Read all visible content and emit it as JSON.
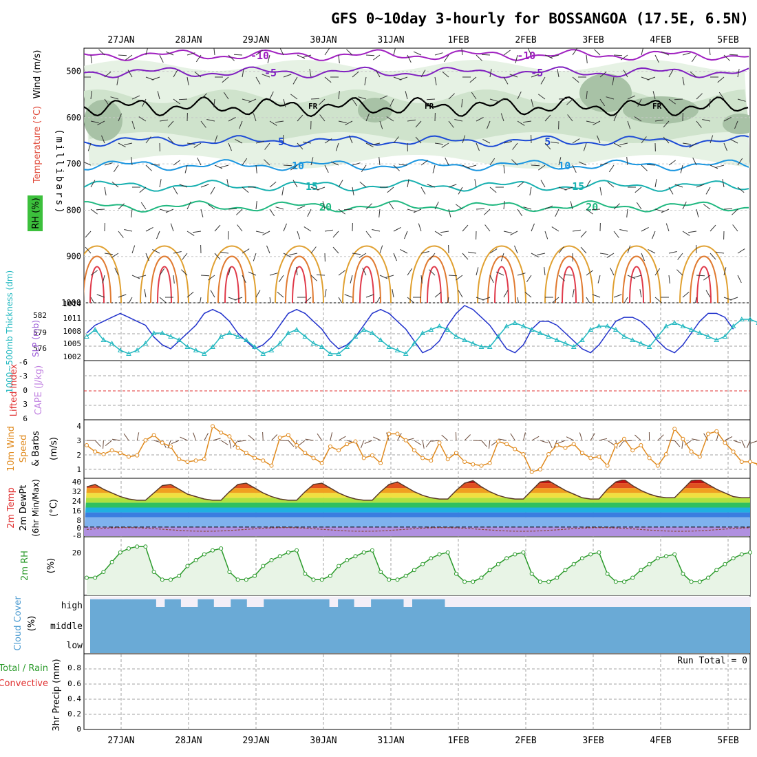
{
  "title": "GFS 0~10day 3-hourly for BOSSANGOA (17.5E, 6.5N)",
  "date_labels": [
    "27JAN",
    "28JAN",
    "29JAN",
    "30JAN",
    "31JAN",
    "1FEB",
    "2FEB",
    "3FEB",
    "4FEB",
    "5FEB"
  ],
  "colors": {
    "frame": "#000000",
    "grid": "#a0a0a0",
    "slp": "#2233cc",
    "thickness": "#22b8c0",
    "wind10m": "#e08a1e",
    "rh2m": "#2a9a2a",
    "cloud": "#6aaad6",
    "cloud_clear": "#f3eff8",
    "lifted_zero": "#e03030"
  },
  "panels": {
    "upper": {
      "ylabel": "(millibars)",
      "legend": [
        {
          "text": "Wind (m/s)",
          "color": "#000000"
        },
        {
          "text": "Temperature (°C)",
          "color": "#e04a3a"
        },
        {
          "text": "RH (%)",
          "color": "#2a9a2a"
        }
      ],
      "pressure_ticks": [
        500,
        600,
        700,
        800,
        900,
        1000
      ],
      "freezing_label": "FR",
      "isotherms": [
        {
          "label": "-10",
          "color": "#a020c0"
        },
        {
          "label": "-5",
          "color": "#8020c0"
        },
        {
          "label": "5",
          "color": "#1d4bd6"
        },
        {
          "label": "10",
          "color": "#1a96e0"
        },
        {
          "label": "15",
          "color": "#18b0b0"
        },
        {
          "label": "20",
          "color": "#20b880"
        }
      ]
    },
    "slp": {
      "label_left": "1000~500mb Thickness (dm)",
      "label_right": "SLP (mb)",
      "left_ticks": [
        "582",
        "579",
        "576"
      ],
      "right_ticks": [
        "1014",
        "1011",
        "1008",
        "1005",
        "1002"
      ]
    },
    "lifted": {
      "label_a": "Lifted Index",
      "label_b": "CAPE (J/kg)",
      "ticks": [
        "-6",
        "-3",
        "0",
        "3",
        "6"
      ]
    },
    "wind": {
      "label_a": "10m Wind",
      "label_b": "Speed",
      "label_c": "& Barbs",
      "unit": "(m/s)",
      "ticks": [
        "4",
        "3",
        "2",
        "1"
      ]
    },
    "temp": {
      "label_a": "2m Temp",
      "label_b": "2m DewPt",
      "label_c": "(6hr Min/Max)",
      "unit": "(°C)",
      "ticks": [
        "40",
        "32",
        "24",
        "16",
        "8",
        "0",
        "-8"
      ]
    },
    "rh": {
      "label": "2m RH",
      "unit": "(%)",
      "ticks": [
        "20"
      ]
    },
    "cloud": {
      "label": "Cloud Cover",
      "unit": "(%)",
      "levels": [
        "high",
        "middle",
        "low"
      ]
    },
    "precip": {
      "label_a": "Total / Rain",
      "label_b": "Convective",
      "ylabel": "3hr Precip (mm)",
      "ticks": [
        "0.8",
        "0.6",
        "0.4",
        "0.2",
        "0"
      ],
      "run_total": "Run Total = 0"
    }
  },
  "chart_data": [
    {
      "type": "line",
      "name": "slp",
      "ylabel": "SLP (mb)",
      "ylim": [
        1000,
        1014
      ],
      "x_step_hours": 3,
      "series": [
        {
          "name": "SLP (mb)",
          "values": [
            1007,
            1009,
            1010,
            1011,
            1012,
            1011,
            1010,
            1009,
            1006,
            1004,
            1003,
            1005,
            1007,
            1009,
            1012,
            1013,
            1012,
            1010,
            1007,
            1005,
            1003,
            1004,
            1006,
            1009,
            1012,
            1013,
            1012,
            1010,
            1008,
            1005,
            1003,
            1004,
            1006,
            1009,
            1012,
            1013,
            1012,
            1010,
            1008,
            1005,
            1002,
            1003,
            1005,
            1009,
            1012,
            1014,
            1013,
            1011,
            1009,
            1006,
            1003,
            1002,
            1004,
            1008,
            1010,
            1010,
            1009,
            1007,
            1005,
            1003,
            1002,
            1004,
            1007,
            1010,
            1011,
            1011,
            1010,
            1008,
            1005,
            1003,
            1002,
            1004,
            1007,
            1010,
            1012,
            1012,
            1011,
            1008
          ]
        }
      ]
    },
    {
      "type": "line",
      "name": "thickness",
      "ylabel": "1000~500mb Thickness (dm)",
      "ylim": [
        575,
        583
      ],
      "series": [
        {
          "name": "1000~500mb Thickness (dm)",
          "values": [
            578.5,
            579.5,
            578,
            577.5,
            576.5,
            576,
            576.5,
            577.5,
            579,
            579,
            578.5,
            578,
            577,
            576.5,
            576,
            577,
            578.5,
            579,
            578.5,
            578,
            577,
            576,
            576.5,
            577.5,
            579,
            579.5,
            578.5,
            577.5,
            577,
            576,
            576,
            577,
            578.5,
            579.5,
            579,
            578,
            577,
            576.5,
            576,
            577.5,
            579,
            579.5,
            580,
            579.5,
            578.5,
            578,
            577.5,
            577,
            577,
            578.5,
            580,
            580.5,
            580,
            579.5,
            579,
            578.5,
            578,
            577.5,
            577,
            578,
            579.5,
            580,
            580,
            579.5,
            578.5,
            578,
            577.5,
            577,
            578.5,
            580,
            580.5,
            580,
            579.5,
            579,
            578.5,
            578,
            578.5,
            580,
            581,
            581,
            580.5,
            579,
            578
          ]
        }
      ]
    },
    {
      "type": "line",
      "name": "wind10m",
      "ylabel": "10m Wind Speed (m/s)",
      "ylim": [
        0,
        4.5
      ],
      "series": [
        {
          "name": "10m Wind Speed",
          "values": [
            2.6,
            2.1,
            1.9,
            2.2,
            2.0,
            1.7,
            1.8,
            3.0,
            3.4,
            2.8,
            2.5,
            1.5,
            1.3,
            1.4,
            1.5,
            4.1,
            3.6,
            3.3,
            2.4,
            2.0,
            1.6,
            1.4,
            1.0,
            3.2,
            3.4,
            2.6,
            2.0,
            1.6,
            1.2,
            2.5,
            2.2,
            2.7,
            2.9,
            1.6,
            1.8,
            1.2,
            3.5,
            3.5,
            3.0,
            2.2,
            1.6,
            1.4,
            2.8,
            1.5,
            2.0,
            1.3,
            1.1,
            1.0,
            1.2,
            2.9,
            2.7,
            2.3,
            1.9,
            0.5,
            0.7,
            1.9,
            2.6,
            2.4,
            2.7,
            2.0,
            1.6,
            1.7,
            1.0,
            2.6,
            3.1,
            2.2,
            2.6,
            1.6,
            1.0,
            1.9,
            3.9,
            3.1,
            2.1,
            1.7,
            3.5,
            3.7,
            2.8,
            2.1,
            1.3,
            1.3,
            1.1,
            0.7
          ]
        }
      ]
    },
    {
      "type": "area",
      "name": "temp2m",
      "ylabel": "2m Temp (°C)",
      "ylim": [
        -8,
        40
      ],
      "series": [
        {
          "name": "2m Temp",
          "values": [
            33,
            35,
            31,
            28,
            25,
            23,
            22,
            22,
            28,
            34,
            35,
            31,
            27,
            25,
            23,
            22,
            22,
            29,
            35,
            36,
            32,
            28,
            25,
            23,
            22,
            22,
            29,
            35,
            36,
            32,
            28,
            25,
            23,
            22,
            22,
            29,
            35,
            37,
            33,
            29,
            26,
            24,
            23,
            23,
            30,
            36,
            38,
            33,
            29,
            26,
            24,
            23,
            23,
            30,
            37,
            38,
            34,
            30,
            27,
            24,
            23,
            23,
            31,
            37,
            39,
            34,
            30,
            27,
            25,
            24,
            24,
            31,
            38,
            39,
            35,
            31,
            28,
            25,
            24,
            24
          ]
        }
      ]
    },
    {
      "type": "area",
      "name": "rh2m",
      "ylabel": "2m RH (%)",
      "ylim": [
        0,
        30
      ],
      "series": [
        {
          "name": "2m RH",
          "values": [
            9,
            9,
            12,
            17,
            22,
            24,
            25,
            25,
            12,
            8,
            8,
            10,
            15,
            18,
            21,
            23,
            24,
            12,
            8,
            8,
            10,
            15,
            18,
            20,
            22,
            23,
            11,
            8,
            8,
            10,
            15,
            18,
            20,
            22,
            23,
            12,
            8,
            8,
            10,
            13,
            16,
            19,
            21,
            22,
            11,
            7,
            7,
            9,
            13,
            16,
            19,
            21,
            22,
            11,
            7,
            7,
            9,
            13,
            16,
            19,
            21,
            22,
            11,
            7,
            7,
            9,
            13,
            16,
            19,
            20,
            21,
            11,
            7,
            7,
            9,
            13,
            16,
            19,
            21,
            22
          ]
        }
      ]
    },
    {
      "type": "heatmap",
      "name": "cloud_cover",
      "ylabel": "Cloud Cover (%)",
      "series": [
        {
          "name": "high",
          "values": [
            85,
            85,
            85,
            85,
            85,
            85,
            85,
            85,
            40,
            85,
            85,
            40,
            40,
            85,
            85,
            40,
            40,
            85,
            85,
            40,
            40,
            85,
            85,
            85,
            85,
            85,
            85,
            85,
            85,
            40,
            85,
            85,
            40,
            40,
            85,
            85,
            85,
            85,
            40,
            85,
            85,
            85,
            85,
            40,
            40,
            40,
            40,
            40,
            40,
            40,
            40,
            40,
            40,
            40,
            40,
            40,
            40,
            40,
            40,
            40,
            40,
            40,
            40,
            40,
            40,
            40,
            40,
            40,
            40,
            40,
            40,
            40,
            40,
            40,
            40,
            40,
            40,
            40,
            40,
            40
          ]
        },
        {
          "name": "middle",
          "values": [
            100,
            100,
            100,
            100,
            100,
            100,
            100,
            100,
            100,
            100,
            100,
            100,
            100,
            100,
            100,
            100,
            100,
            100,
            100,
            100,
            100,
            100,
            100,
            100,
            100,
            100,
            100,
            100,
            100,
            100,
            100,
            100,
            100,
            100,
            100,
            100,
            100,
            100,
            100,
            100,
            100,
            100,
            100,
            100,
            100,
            100,
            100,
            100,
            100,
            100,
            100,
            100,
            100,
            100,
            100,
            100,
            100,
            100,
            100,
            100,
            100,
            100,
            100,
            100,
            100,
            100,
            100,
            100,
            100,
            100,
            100,
            100,
            100,
            100,
            100,
            100,
            100,
            100,
            100,
            100
          ]
        },
        {
          "name": "low",
          "values": [
            100,
            100,
            100,
            100,
            100,
            100,
            100,
            100,
            100,
            100,
            100,
            100,
            100,
            100,
            100,
            100,
            100,
            100,
            100,
            100,
            100,
            100,
            100,
            100,
            100,
            100,
            100,
            100,
            100,
            100,
            100,
            100,
            100,
            100,
            100,
            100,
            100,
            100,
            100,
            100,
            100,
            100,
            100,
            100,
            100,
            100,
            100,
            100,
            100,
            100,
            100,
            100,
            100,
            100,
            100,
            100,
            100,
            100,
            100,
            100,
            100,
            100,
            100,
            100,
            100,
            100,
            100,
            100,
            100,
            100,
            100,
            100,
            100,
            100,
            100,
            100,
            100,
            100,
            100,
            100
          ]
        }
      ]
    },
    {
      "type": "bar",
      "name": "precip",
      "ylabel": "3hr Precip (mm)",
      "ylim": [
        0,
        1
      ],
      "series": [
        {
          "name": "Total / Rain",
          "values": [
            0,
            0,
            0,
            0,
            0,
            0,
            0,
            0,
            0,
            0,
            0,
            0,
            0,
            0,
            0,
            0,
            0,
            0,
            0,
            0,
            0,
            0,
            0,
            0,
            0,
            0,
            0,
            0,
            0,
            0,
            0,
            0,
            0,
            0,
            0,
            0,
            0,
            0,
            0,
            0,
            0,
            0,
            0,
            0,
            0,
            0,
            0,
            0,
            0,
            0,
            0,
            0,
            0,
            0,
            0,
            0,
            0,
            0,
            0,
            0,
            0,
            0,
            0,
            0,
            0,
            0,
            0,
            0,
            0,
            0,
            0,
            0,
            0,
            0,
            0,
            0,
            0,
            0,
            0,
            0
          ]
        }
      ]
    }
  ]
}
